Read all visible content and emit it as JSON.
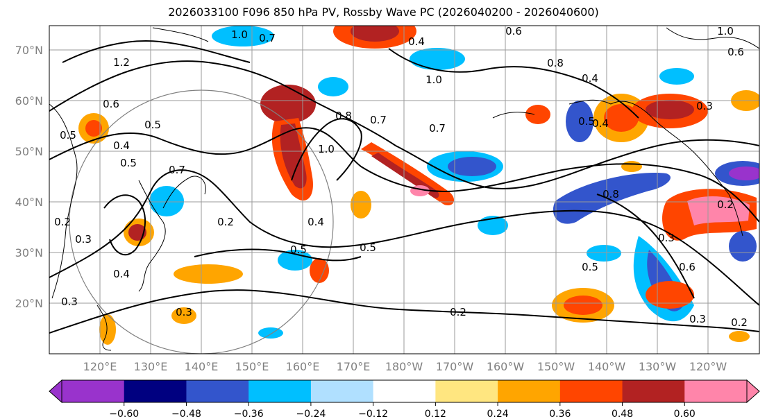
{
  "title": "2026033100 F096 850 hPa PV, Rossby Wave PC (2026040200 - 2026040600)",
  "map": {
    "lat_labels": [
      "70°N",
      "60°N",
      "50°N",
      "40°N",
      "30°N",
      "20°N"
    ],
    "lon_labels": [
      "120°E",
      "130°E",
      "140°E",
      "150°E",
      "160°E",
      "170°E",
      "180°W",
      "170°W",
      "160°W",
      "150°W",
      "140°W",
      "130°W",
      "120°W"
    ],
    "contour_labels": [
      "1.0",
      "0.7",
      "0.6",
      "0.4",
      "0.8",
      "1.0",
      "0.5",
      "0.3",
      "1.2",
      "0.6",
      "0.5",
      "0.4",
      "0.5",
      "0.7",
      "0.7",
      "0.8",
      "0.7",
      "1.0",
      "0.2",
      "0.3",
      "0.2",
      "0.4",
      "0.5",
      "0.5",
      "0.2",
      "0.4",
      "0.3",
      "0.5",
      "0.3",
      "0.2",
      "0.6",
      "0.8",
      "0.3",
      "0.2",
      "0.4",
      "0.3",
      "0.5",
      "0.4",
      "1.0",
      "0.6"
    ]
  },
  "colorbar": {
    "tick_labels": [
      "−0.60",
      "−0.48",
      "−0.36",
      "−0.24",
      "−0.12",
      "0.12",
      "0.24",
      "0.36",
      "0.48",
      "0.60"
    ],
    "colors": [
      "#9933cc",
      "#000080",
      "#3355cc",
      "#00bfff",
      "#b0e0ff",
      "#ffffff",
      "#ffe680",
      "#ffa500",
      "#ff4500",
      "#b22222",
      "#ff85aa",
      "#ff85aa"
    ]
  }
}
